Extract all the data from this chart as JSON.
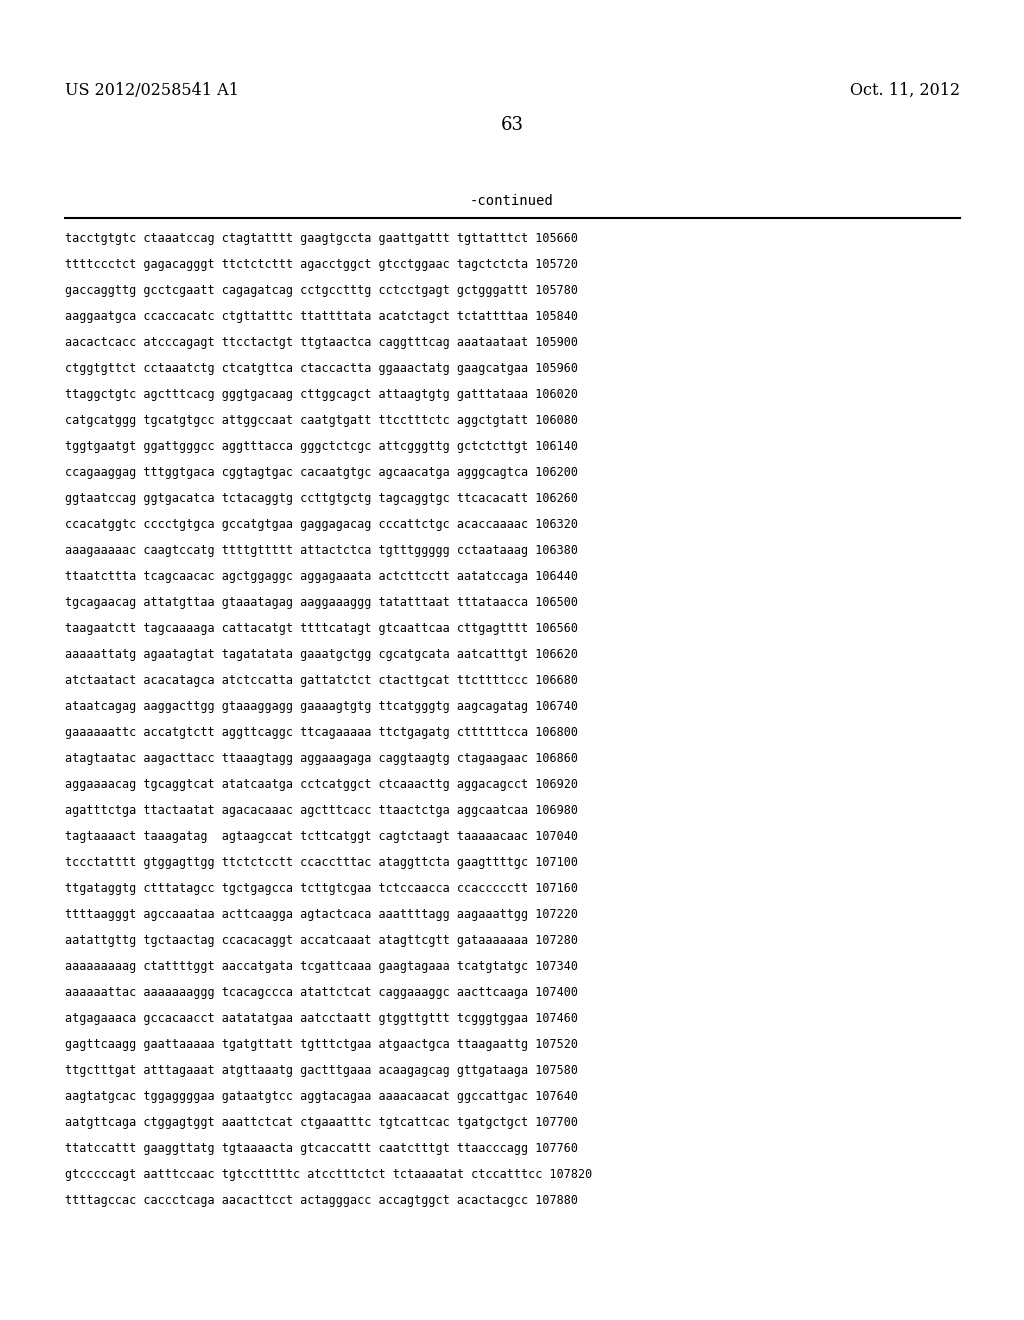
{
  "header_left": "US 2012/0258541 A1",
  "header_right": "Oct. 11, 2012",
  "page_number": "63",
  "continued_label": "-continued",
  "background_color": "#ffffff",
  "text_color": "#000000",
  "sequences": [
    "tacctgtgtc ctaaatccag ctagtatttt gaagtgccta gaattgattt tgttatttct 105660",
    "ttttccctct gagacagggt ttctctcttt agacctggct gtcctggaac tagctctcta 105720",
    "gaccaggttg gcctcgaatt cagagatcag cctgcctttg cctcctgagt gctgggattt 105780",
    "aaggaatgca ccaccacatc ctgttatttc ttattttata acatctagct tctattttaa 105840",
    "aacactcacc atcccagagt ttcctactgt ttgtaactca caggtttcag aaataataat 105900",
    "ctggtgttct cctaaatctg ctcatgttca ctaccactta ggaaactatg gaagcatgaa 105960",
    "ttaggctgtc agctttcacg gggtgacaag cttggcagct attaagtgtg gatttataaa 106020",
    "catgcatggg tgcatgtgcc attggccaat caatgtgatt ttcctttctc aggctgtatt 106080",
    "tggtgaatgt ggattgggcc aggtttacca gggctctcgc attcgggttg gctctcttgt 106140",
    "ccagaaggag tttggtgaca cggtagtgac cacaatgtgc agcaacatga agggcagtca 106200",
    "ggtaatccag ggtgacatca tctacaggtg ccttgtgctg tagcaggtgc ttcacacatt 106260",
    "ccacatggtc cccctgtgca gccatgtgaa gaggagacag cccattctgc acaccaaaac 106320",
    "aaagaaaaac caagtccatg ttttgttttt attactctca tgtttggggg cctaataaag 106380",
    "ttaatcttta tcagcaacac agctggaggc aggagaaata actcttcctt aatatccaga 106440",
    "tgcagaacag attatgttaa gtaaatagag aaggaaaggg tatatttaat tttataacca 106500",
    "taagaatctt tagcaaaaga cattacatgt ttttcatagt gtcaattcaa cttgagtttt 106560",
    "aaaaattatg agaatagtat tagatatata gaaatgctgg cgcatgcata aatcatttgt 106620",
    "atctaatact acacatagca atctccatta gattatctct ctacttgcat ttcttttccc 106680",
    "ataatcagag aaggacttgg gtaaaggagg gaaaagtgtg ttcatgggtg aagcagatag 106740",
    "gaaaaaattc accatgtctt aggttcaggc ttcagaaaaa ttctgagatg cttttttcca 106800",
    "atagtaatac aagacttacc ttaaagtagg aggaaagaga caggtaagtg ctagaagaac 106860",
    "aggaaaacag tgcaggtcat atatcaatga cctcatggct ctcaaacttg aggacagcct 106920",
    "agatttctga ttactaatat agacacaaac agctttcacc ttaactctga aggcaatcaa 106980",
    "tagtaaaact taaagatag  agtaagccat tcttcatggt cagtctaagt taaaaacaac 107040",
    "tccctatttt gtggagttgg ttctctcctt ccacctttac ataggttcta gaagttttgc 107100",
    "ttgataggtg ctttatagcc tgctgagcca tcttgtcgaa tctccaacca ccaccccctt 107160",
    "ttttaagggt agccaaataa acttcaagga agtactcaca aaattttagg aagaaattgg 107220",
    "aatattgttg tgctaactag ccacacaggt accatcaaat atagttcgtt gataaaaaaa 107280",
    "aaaaaaaaag ctattttggt aaccatgata tcgattcaaa gaagtagaaa tcatgtatgc 107340",
    "aaaaaattac aaaaaaaggg tcacagccca atattctcat caggaaaggc aacttcaaga 107400",
    "atgagaaaca gccacaacct aatatatgaa aatcctaatt gtggttgttt tcgggtggaa 107460",
    "gagttcaagg gaattaaaaa tgatgttatt tgtttctgaa atgaactgca ttaagaattg 107520",
    "ttgctttgat atttagaaat atgttaaatg gactttgaaa acaagagcag gttgataaga 107580",
    "aagtatgcac tggaggggaa gataatgtcc aggtacagaa aaaacaacat ggccattgac 107640",
    "aatgttcaga ctggagtggt aaattctcat ctgaaatttc tgtcattcac tgatgctgct 107700",
    "ttatccattt gaaggttatg tgtaaaacta gtcaccattt caatctttgt ttaacccagg 107760",
    "gtcccccagt aatttccaac tgtcctttttc atcctttctct tctaaaatat ctccatttcc 107820",
    "ttttagccac caccctcaga aacacttcct actagggacc accagtggct acactacgcc 107880"
  ]
}
